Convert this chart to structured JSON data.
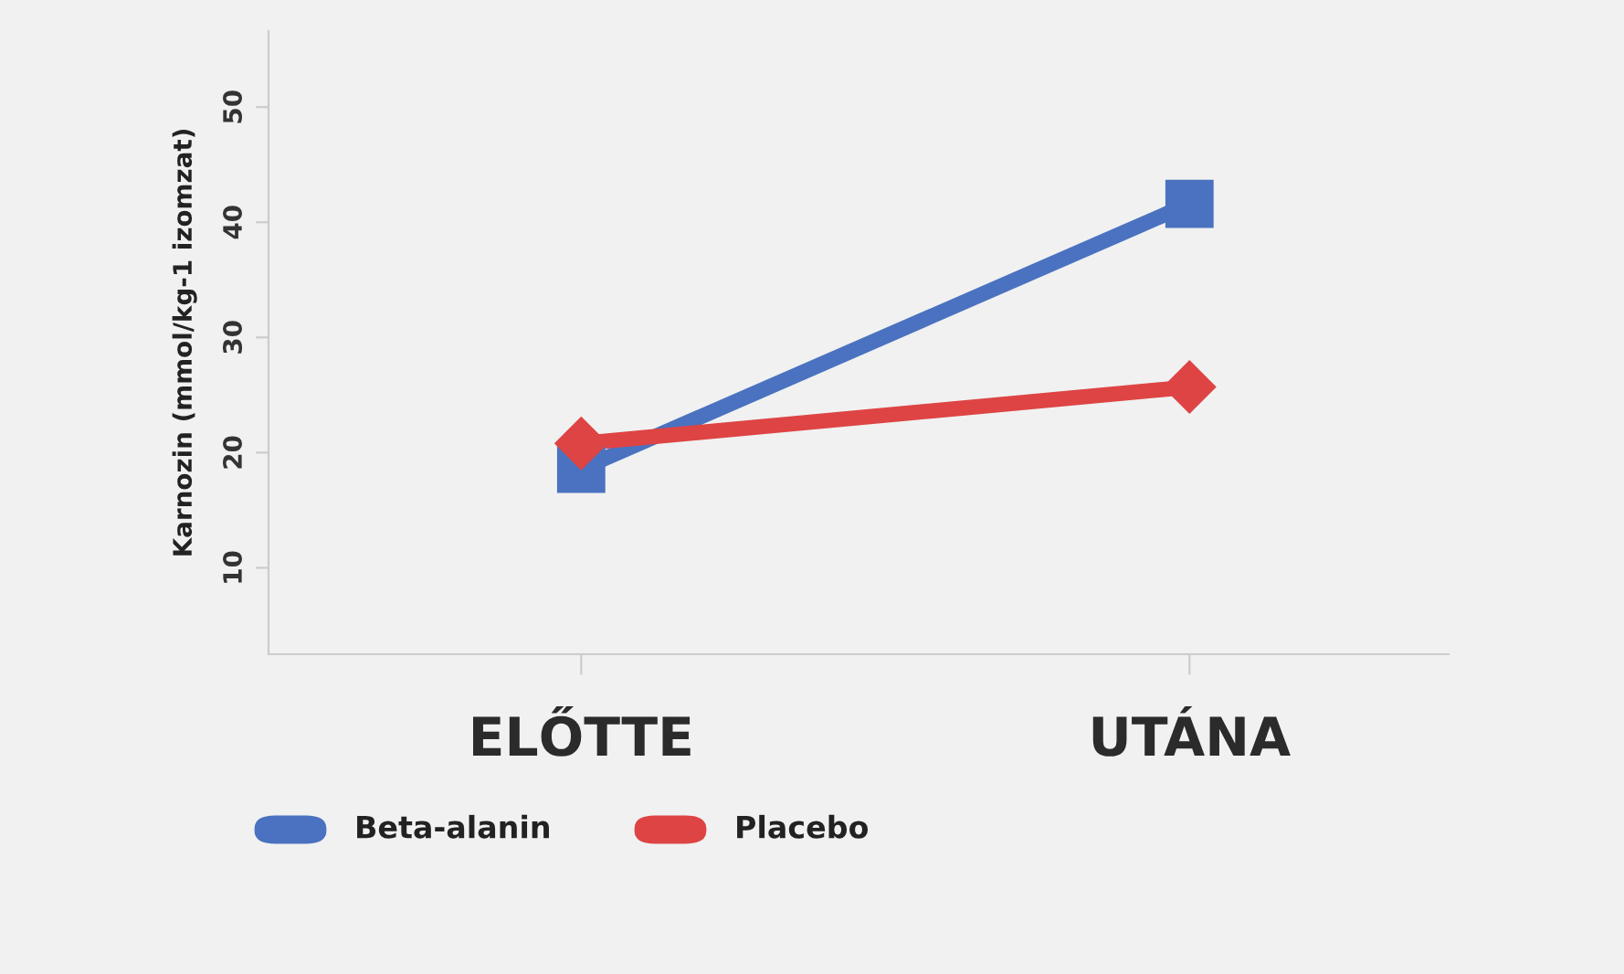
{
  "chart_data": {
    "type": "line",
    "ylabel": "Karnozin (mmol/kg-1 izomzat)",
    "categories": [
      "ELŐTTE",
      "UTÁNA"
    ],
    "series": [
      {
        "name": "Beta-alanin",
        "color": "#4a72c0",
        "values": [
          18.6,
          41.6
        ],
        "marker": "square"
      },
      {
        "name": "Placebo",
        "color": "#de4444",
        "values": [
          20.8,
          25.7
        ],
        "marker": "diamond"
      }
    ],
    "ylim": [
      2.5,
      56.6
    ],
    "yticks": [
      10,
      20,
      30,
      40,
      50
    ],
    "grid": false,
    "legend": "bottom left",
    "line_style": "solid"
  }
}
